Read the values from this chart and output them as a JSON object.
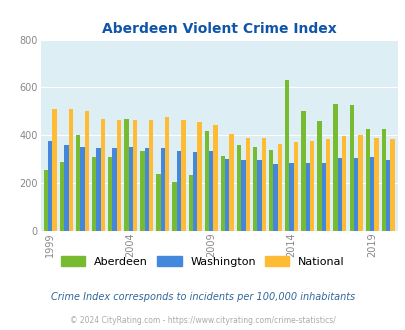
{
  "title": "Aberdeen Violent Crime Index",
  "years": [
    1999,
    2000,
    2001,
    2002,
    2003,
    2004,
    2005,
    2006,
    2007,
    2008,
    2009,
    2010,
    2011,
    2012,
    2013,
    2014,
    2015,
    2016,
    2017,
    2018,
    2019,
    2020
  ],
  "aberdeen": [
    255,
    290,
    400,
    310,
    310,
    470,
    335,
    240,
    205,
    235,
    420,
    315,
    360,
    350,
    340,
    630,
    500,
    460,
    530,
    525,
    425,
    425
  ],
  "washington": [
    375,
    360,
    350,
    345,
    345,
    350,
    345,
    345,
    335,
    330,
    335,
    300,
    295,
    295,
    280,
    285,
    285,
    285,
    305,
    305,
    310,
    295
  ],
  "national": [
    510,
    510,
    500,
    470,
    465,
    465,
    465,
    475,
    465,
    455,
    445,
    405,
    390,
    390,
    365,
    370,
    375,
    385,
    395,
    400,
    390,
    385
  ],
  "aberdeen_color": "#77bb33",
  "washington_color": "#4488dd",
  "national_color": "#ffbb33",
  "bg_color": "#ddeef5",
  "ylim": [
    0,
    800
  ],
  "yticks": [
    0,
    200,
    400,
    600,
    800
  ],
  "xtick_years": [
    1999,
    2004,
    2009,
    2014,
    2019
  ],
  "legend_labels": [
    "Aberdeen",
    "Washington",
    "National"
  ],
  "footnote1": "Crime Index corresponds to incidents per 100,000 inhabitants",
  "footnote2": "© 2024 CityRating.com - https://www.cityrating.com/crime-statistics/",
  "title_color": "#1155aa",
  "footnote1_color": "#336699",
  "footnote2_color": "#aaaaaa"
}
